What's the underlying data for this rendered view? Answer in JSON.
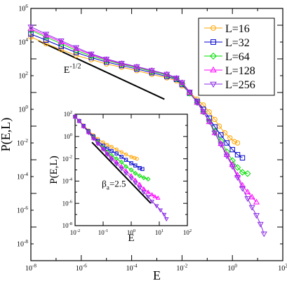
{
  "chart_data": [
    {
      "id": "main",
      "type": "line",
      "xlabel": "E",
      "ylabel": "P(E,L)",
      "xscale": "log",
      "yscale": "log",
      "xlim": [
        1e-08,
        100
      ],
      "ylim": [
        1e-09,
        1000000.0
      ],
      "x_ticks": [
        {
          "v": 1e-08,
          "m": "10",
          "e": "-8"
        },
        {
          "v": 1e-06,
          "m": "10",
          "e": "-6"
        },
        {
          "v": 0.0001,
          "m": "10",
          "e": "-4"
        },
        {
          "v": 0.01,
          "m": "10",
          "e": "-2"
        },
        {
          "v": 1,
          "m": "10",
          "e": "0"
        },
        {
          "v": 100,
          "m": "10",
          "e": "2"
        }
      ],
      "y_ticks": [
        {
          "v": 1e-08,
          "m": "10",
          "e": "-8"
        },
        {
          "v": 1e-06,
          "m": "10",
          "e": "-6"
        },
        {
          "v": 0.0001,
          "m": "10",
          "e": "-4"
        },
        {
          "v": 0.01,
          "m": "10",
          "e": "-2"
        },
        {
          "v": 1,
          "m": "10",
          "e": "0"
        },
        {
          "v": 100,
          "m": "10",
          "e": "2"
        },
        {
          "v": 10000.0,
          "m": "10",
          "e": "4"
        },
        {
          "v": 1000000.0,
          "m": "10",
          "e": "6"
        }
      ],
      "legend": {
        "placement": "top-right"
      },
      "series": [
        {
          "name": "L=16",
          "color": "#ffa500",
          "marker": "circle",
          "x": [
            1e-08,
            4e-08,
            1.6e-07,
            6.3e-07,
            2.5e-06,
            1e-05,
            4e-05,
            0.00016,
            0.00063,
            0.0025,
            0.006,
            0.01,
            0.02,
            0.04,
            0.07,
            0.12,
            0.2,
            0.3,
            0.5,
            0.8,
            1.2,
            1.6
          ],
          "y": [
            20000.0,
            8000.0,
            3500.0,
            1600.0,
            900,
            500,
            320,
            200,
            120,
            75,
            50,
            25,
            10,
            4,
            1.8,
            0.7,
            0.25,
            0.1,
            0.04,
            0.02,
            0.012,
            0.01
          ]
        },
        {
          "name": "L=32",
          "color": "#0000cd",
          "marker": "square",
          "x": [
            1e-08,
            4e-08,
            1.6e-07,
            6.3e-07,
            2.5e-06,
            1e-05,
            4e-05,
            0.00016,
            0.00063,
            0.0025,
            0.006,
            0.01,
            0.02,
            0.04,
            0.07,
            0.12,
            0.2,
            0.35,
            0.6,
            1,
            1.6,
            2.5
          ],
          "y": [
            30000.0,
            13000.0,
            5500.0,
            2400.0,
            1200.0,
            650,
            400,
            250,
            150,
            90,
            60,
            30,
            9,
            3,
            1,
            0.3,
            0.09,
            0.03,
            0.01,
            0.004,
            0.002,
            0.0013
          ]
        },
        {
          "name": "L=64",
          "color": "#00dd00",
          "marker": "diamond",
          "x": [
            1e-08,
            4e-08,
            1.6e-07,
            6.3e-07,
            2.5e-06,
            1e-05,
            4e-05,
            0.00016,
            0.00063,
            0.0025,
            0.006,
            0.01,
            0.02,
            0.04,
            0.07,
            0.12,
            0.2,
            0.35,
            0.6,
            1,
            1.6,
            2.5,
            4
          ],
          "y": [
            50000.0,
            20000.0,
            8000.0,
            3200.0,
            1500.0,
            800,
            480,
            300,
            180,
            110,
            65,
            35,
            9,
            2.5,
            0.7,
            0.2,
            0.05,
            0.013,
            0.003,
            0.0009,
            0.00035,
            0.00018,
            0.00015
          ]
        },
        {
          "name": "L=128",
          "color": "#ff00ff",
          "marker": "triangle-up",
          "x": [
            1e-08,
            4e-08,
            1.6e-07,
            6.3e-07,
            2.5e-06,
            1e-05,
            4e-05,
            0.00016,
            0.00063,
            0.0025,
            0.006,
            0.01,
            0.02,
            0.04,
            0.07,
            0.12,
            0.2,
            0.35,
            0.6,
            1,
            1.6,
            2.5,
            4,
            6,
            9
          ],
          "y": [
            60000.0,
            25000.0,
            10000.0,
            4000.0,
            1800.0,
            900,
            520,
            330,
            200,
            120,
            70,
            38,
            10,
            2.5,
            0.7,
            0.18,
            0.04,
            0.009,
            0.002,
            0.0005,
            0.00012,
            3e-05,
            1.2e-05,
            6e-06,
            3e-06
          ]
        },
        {
          "name": "L=256",
          "color": "#8a2be2",
          "marker": "triangle-down",
          "x": [
            1e-08,
            4e-08,
            1.6e-07,
            6.3e-07,
            2.5e-06,
            1e-05,
            4e-05,
            0.00016,
            0.00063,
            0.0025,
            0.006,
            0.01,
            0.02,
            0.04,
            0.07,
            0.12,
            0.2,
            0.35,
            0.6,
            1,
            1.6,
            2.5,
            4,
            6,
            9,
            13,
            18
          ],
          "y": [
            80000.0,
            30000.0,
            12000.0,
            4800.0,
            2000.0,
            1000.0,
            560,
            350,
            210,
            125,
            75,
            40,
            11,
            2.6,
            0.75,
            0.19,
            0.04,
            0.008,
            0.0017,
            0.0004,
            9e-05,
            2e-05,
            5e-06,
            1.5e-06,
            5e-07,
            1.5e-07,
            4e-08
          ]
        }
      ],
      "annotations": [
        {
          "text_main": "E",
          "text_sup": "-1/2",
          "at": [
            2e-07,
            150
          ]
        }
      ],
      "reference_lines": [
        {
          "x": [
            2e-08,
            0.002
          ],
          "y": [
            12000.0,
            4
          ]
        }
      ]
    },
    {
      "id": "inset",
      "type": "line",
      "xlabel": "E",
      "ylabel": "P(E,L)",
      "xscale": "log",
      "yscale": "log",
      "xlim": [
        0.01,
        100
      ],
      "ylim": [
        1e-08,
        100
      ],
      "x_ticks": [
        {
          "v": 0.01,
          "m": "10",
          "e": "-2"
        },
        {
          "v": 0.1,
          "m": "10",
          "e": "-1"
        },
        {
          "v": 1,
          "m": "10",
          "e": "0"
        },
        {
          "v": 10,
          "m": "10",
          "e": "1"
        },
        {
          "v": 100,
          "m": "10",
          "e": "2"
        }
      ],
      "y_ticks": [
        {
          "v": 1e-08,
          "m": "10",
          "e": "-8"
        },
        {
          "v": 1e-06,
          "m": "10",
          "e": "-6"
        },
        {
          "v": 0.0001,
          "m": "10",
          "e": "-4"
        },
        {
          "v": 0.01,
          "m": "10",
          "e": "-2"
        },
        {
          "v": 1,
          "m": "10",
          "e": "0"
        },
        {
          "v": 100,
          "m": "10",
          "e": "2"
        }
      ],
      "series": [
        {
          "name": "L=16",
          "color": "#ffa500",
          "marker": "circle",
          "x": [
            0.01,
            0.014,
            0.02,
            0.03,
            0.045,
            0.065,
            0.1,
            0.14,
            0.2,
            0.3,
            0.45,
            0.65,
            1,
            1.3,
            1.6
          ],
          "y": [
            60,
            25,
            10,
            3.5,
            1.3,
            0.6,
            0.3,
            0.18,
            0.12,
            0.07,
            0.04,
            0.025,
            0.015,
            0.012,
            0.01
          ]
        },
        {
          "name": "L=32",
          "color": "#0000cd",
          "marker": "square",
          "x": [
            0.01,
            0.014,
            0.02,
            0.03,
            0.045,
            0.065,
            0.1,
            0.14,
            0.2,
            0.3,
            0.45,
            0.65,
            1,
            1.4,
            2,
            2.5
          ],
          "y": [
            60,
            25,
            9,
            3,
            1,
            0.4,
            0.15,
            0.08,
            0.05,
            0.03,
            0.015,
            0.008,
            0.004,
            0.0025,
            0.0015,
            0.0012
          ]
        },
        {
          "name": "L=64",
          "color": "#00dd00",
          "marker": "diamond",
          "x": [
            0.01,
            0.014,
            0.02,
            0.03,
            0.045,
            0.065,
            0.1,
            0.14,
            0.2,
            0.3,
            0.45,
            0.65,
            1,
            1.4,
            2,
            2.8,
            4
          ],
          "y": [
            60,
            25,
            8,
            2.5,
            0.8,
            0.3,
            0.1,
            0.04,
            0.02,
            0.01,
            0.005,
            0.002,
            0.001,
            0.0005,
            0.0003,
            0.0002,
            0.00015
          ]
        },
        {
          "name": "L=128",
          "color": "#ff00ff",
          "marker": "triangle-up",
          "x": [
            0.01,
            0.014,
            0.02,
            0.03,
            0.045,
            0.065,
            0.1,
            0.14,
            0.2,
            0.3,
            0.45,
            0.65,
            1,
            1.4,
            2,
            2.8,
            4,
            5.5,
            7,
            9
          ],
          "y": [
            60,
            25,
            8,
            2.3,
            0.7,
            0.25,
            0.08,
            0.03,
            0.012,
            0.005,
            0.002,
            0.0008,
            0.0003,
            0.00012,
            5e-05,
            2e-05,
            1e-05,
            6e-06,
            4e-06,
            3e-06
          ]
        },
        {
          "name": "L=256",
          "color": "#8a2be2",
          "marker": "triangle-down",
          "x": [
            0.01,
            0.014,
            0.02,
            0.03,
            0.045,
            0.065,
            0.1,
            0.14,
            0.2,
            0.3,
            0.45,
            0.65,
            1,
            1.4,
            2,
            2.8,
            4,
            5.5,
            8,
            11,
            15,
            18
          ],
          "y": [
            60,
            25,
            8,
            2.2,
            0.65,
            0.22,
            0.07,
            0.025,
            0.009,
            0.0035,
            0.0013,
            0.0005,
            0.00018,
            7e-05,
            2.5e-05,
            1e-05,
            4e-06,
            1.5e-06,
            6e-07,
            2.5e-07,
            1e-07,
            4e-08
          ]
        }
      ],
      "annotations": [
        {
          "text_main": "β",
          "text_sub": "a",
          "text_rest": "=2.5",
          "at": [
            0.09,
            3e-05
          ]
        }
      ],
      "reference_lines": [
        {
          "x": [
            0.04,
            5
          ],
          "y": [
            0.3,
            1e-06
          ]
        }
      ]
    }
  ]
}
